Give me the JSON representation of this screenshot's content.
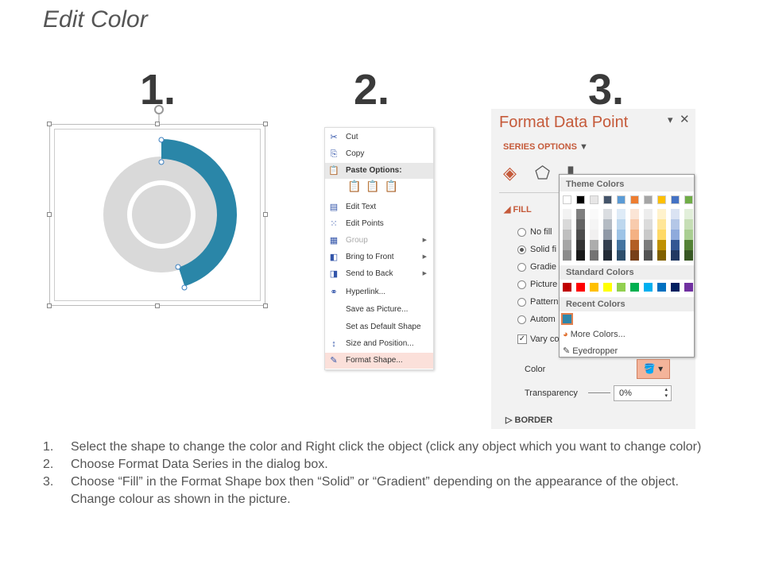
{
  "title": "Edit Color",
  "step_numbers": [
    "1.",
    "2.",
    "3."
  ],
  "context_menu": {
    "items": [
      {
        "label": "Cut",
        "icon": "scissors-icon"
      },
      {
        "label": "Copy",
        "icon": "copy-icon"
      },
      {
        "label": "Paste Options:",
        "icon": "paste-icon"
      },
      {
        "label": "Edit Text",
        "icon": "edit-text-icon"
      },
      {
        "label": "Edit Points",
        "icon": "edit-points-icon"
      },
      {
        "label": "Group",
        "icon": "group-icon",
        "disabled": true,
        "submenu": true
      },
      {
        "label": "Bring to Front",
        "icon": "bring-to-front-icon",
        "submenu": true
      },
      {
        "label": "Send to Back",
        "icon": "send-to-back-icon",
        "submenu": true
      },
      {
        "label": "Hyperlink...",
        "icon": "hyperlink-icon"
      },
      {
        "label": "Save as Picture..."
      },
      {
        "label": "Set as Default Shape"
      },
      {
        "label": "Size and Position...",
        "icon": "size-position-icon"
      },
      {
        "label": "Format Shape...",
        "icon": "format-shape-icon",
        "highlighted": true
      }
    ]
  },
  "pane": {
    "title": "Format Data Point",
    "series_options": "SERIES OPTIONS",
    "fill_header": "FILL",
    "fill_options": [
      {
        "label": "No fill",
        "selected": false
      },
      {
        "label": "Solid fi",
        "selected": true
      },
      {
        "label": "Gradie",
        "selected": false
      },
      {
        "label": "Picture",
        "selected": false
      },
      {
        "label": "Pattern",
        "selected": false
      },
      {
        "label": "Autom",
        "selected": false
      }
    ],
    "vary_label": "Vary co",
    "vary_checked": true,
    "color_label": "Color",
    "transparency_label": "Transparency",
    "transparency_value": "0%",
    "border_header": "BORDER",
    "accent": "#c55a3a"
  },
  "picker": {
    "theme_label": "Theme Colors",
    "standard_label": "Standard Colors",
    "recent_label": "Recent Colors",
    "more_colors": "More Colors...",
    "eyedropper": "Eyedropper",
    "theme_colors": [
      "#ffffff",
      "#000000",
      "#e7e6e6",
      "#44546a",
      "#5b9bd5",
      "#ed7d31",
      "#a5a5a5",
      "#ffc000",
      "#4472c4",
      "#70ad47"
    ],
    "standard_colors": [
      "#c00000",
      "#ff0000",
      "#ffc000",
      "#ffff00",
      "#92d050",
      "#00b050",
      "#00b0f0",
      "#0070c0",
      "#002060",
      "#7030a0"
    ],
    "recent_colors": [
      "#2e86ab"
    ]
  },
  "chart": {
    "arc_color": "#2a86a8",
    "ring_color": "#d9d9d9"
  },
  "steps": [
    {
      "n": "1.",
      "text": "Select the shape to change the color and Right click the object (click any object which you want to change color)"
    },
    {
      "n": "2.",
      "text": "Choose Format Data Series in the dialog box."
    },
    {
      "n": "3.",
      "text": "Choose “Fill” in the Format Shape box then “Solid” or “Gradient” depending on the appearance of the object. Change colour as shown in the picture."
    }
  ]
}
